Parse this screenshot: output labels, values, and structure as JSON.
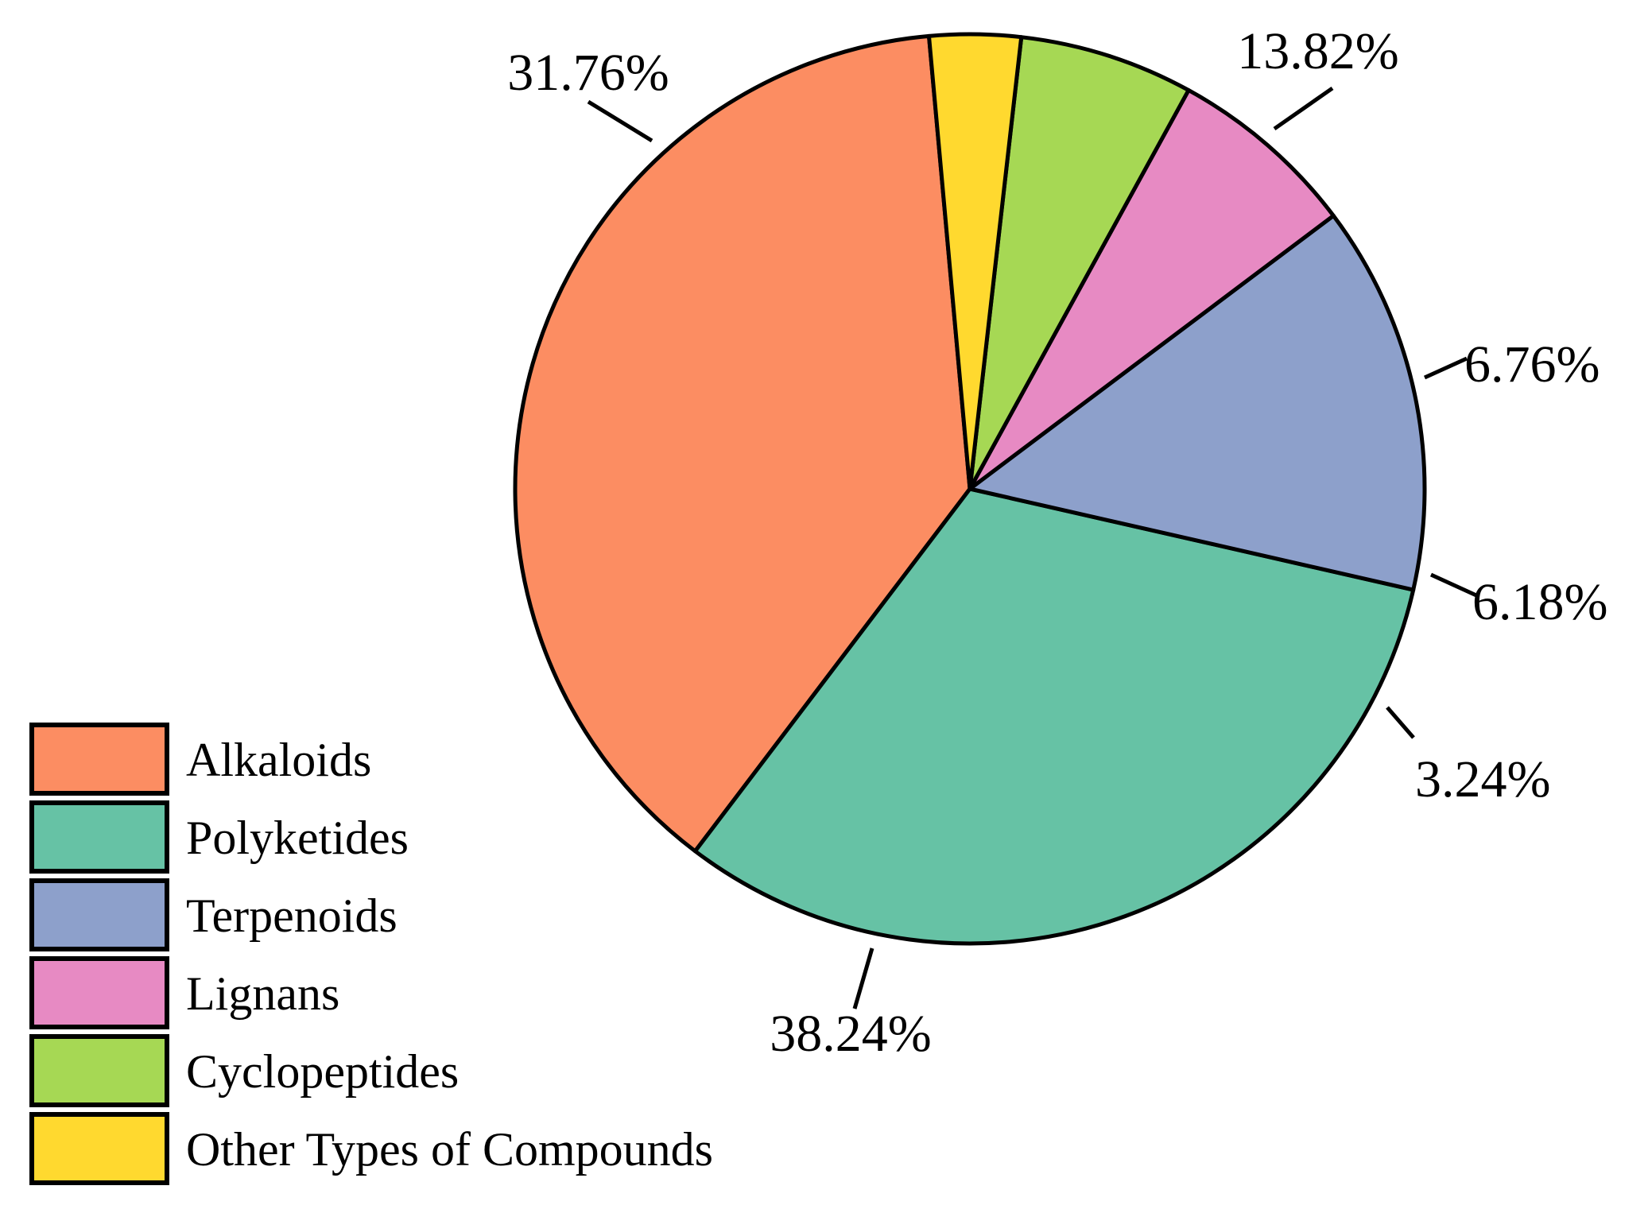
{
  "chart_data": {
    "type": "pie",
    "title": "",
    "legend_position": "bottom-left",
    "slices": [
      {
        "name": "Alkaloids",
        "value": 38.24,
        "label": "38.24%",
        "color": "#fc8d62"
      },
      {
        "name": "Polyketides",
        "value": 31.76,
        "label": "31.76%",
        "color": "#66c2a5"
      },
      {
        "name": "Terpenoids",
        "value": 13.82,
        "label": "13.82%",
        "color": "#8da0cb"
      },
      {
        "name": "Lignans",
        "value": 6.76,
        "label": "6.76%",
        "color": "#e78ac3"
      },
      {
        "name": "Cyclopeptides",
        "value": 6.18,
        "label": "6.18%",
        "color": "#a6d854"
      },
      {
        "name": "Other Types of Compounds",
        "value": 3.24,
        "label": "3.24%",
        "color": "#ffd92f"
      }
    ]
  }
}
